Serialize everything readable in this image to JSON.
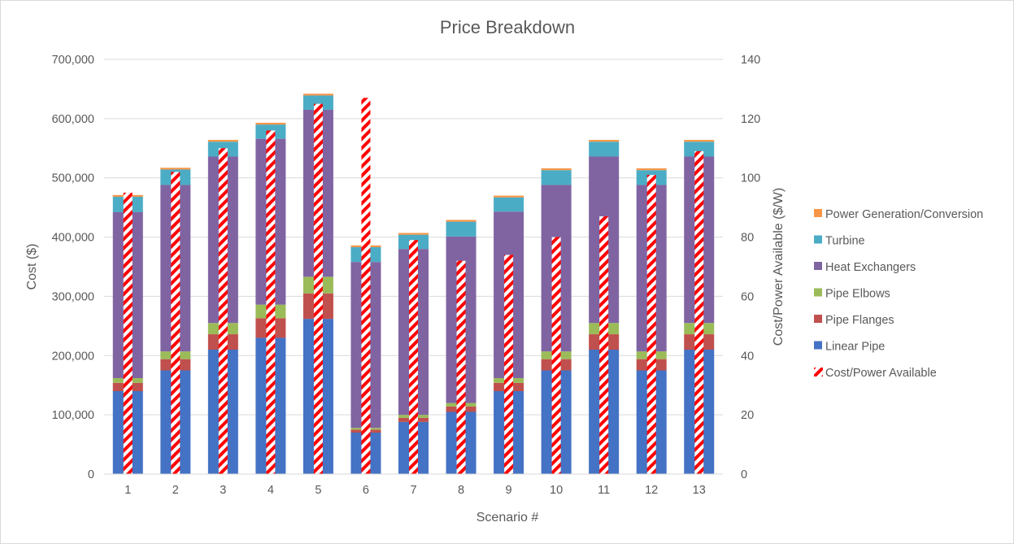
{
  "chart_data": {
    "type": "bar",
    "stacked": true,
    "title": "Price Breakdown",
    "xlabel": "Scenario #",
    "ylabel": "Cost ($)",
    "y2label": "Cost/Power Available ($/W)",
    "ylim": [
      0,
      700000
    ],
    "y2lim": [
      0,
      140
    ],
    "y_ticks": [
      "0",
      "100,000",
      "200,000",
      "300,000",
      "400,000",
      "500,000",
      "600,000",
      "700,000"
    ],
    "y2_ticks": [
      "0",
      "20",
      "40",
      "60",
      "80",
      "100",
      "120",
      "140"
    ],
    "categories": [
      "1",
      "2",
      "3",
      "4",
      "5",
      "6",
      "7",
      "8",
      "9",
      "10",
      "11",
      "12",
      "13"
    ],
    "series": [
      {
        "name": "Linear Pipe",
        "color": "#4472C4",
        "values": [
          140000,
          175000,
          210000,
          230000,
          262000,
          70000,
          88000,
          105000,
          140000,
          175000,
          210000,
          175000,
          210000
        ]
      },
      {
        "name": "Pipe Flanges",
        "color": "#C0504D",
        "values": [
          14000,
          19000,
          26000,
          33000,
          43000,
          5000,
          7000,
          9000,
          14000,
          19000,
          26000,
          19000,
          26000
        ]
      },
      {
        "name": "Pipe Elbows",
        "color": "#9BBB59",
        "values": [
          8000,
          13000,
          19000,
          23000,
          28000,
          3000,
          5000,
          6000,
          8000,
          13000,
          19000,
          13000,
          19000
        ]
      },
      {
        "name": "Heat Exchangers",
        "color": "#8064A2",
        "values": [
          280000,
          281000,
          281000,
          280000,
          282000,
          280000,
          280000,
          281000,
          281000,
          281000,
          281000,
          281000,
          281000
        ]
      },
      {
        "name": "Turbine",
        "color": "#4BACC6",
        "values": [
          26000,
          26000,
          25000,
          24000,
          24000,
          25000,
          24000,
          25000,
          24000,
          25000,
          25000,
          25000,
          25000
        ]
      },
      {
        "name": "Power Generation/Conversion",
        "color": "#F79646",
        "values": [
          3000,
          3000,
          3000,
          3000,
          3000,
          3000,
          3000,
          3000,
          3000,
          3000,
          3000,
          3000,
          3000
        ]
      }
    ],
    "secondary_series": {
      "name": "Cost/Power Available",
      "axis": "right",
      "color": "#FF0000",
      "values": [
        95,
        102,
        110,
        116,
        125,
        127,
        79,
        72,
        74,
        80,
        87,
        101,
        109
      ]
    },
    "legend": [
      "Power Generation/Conversion",
      "Turbine",
      "Heat Exchangers",
      "Pipe Elbows",
      "Pipe Flanges",
      "Linear Pipe",
      "Cost/Power Available"
    ],
    "legend_position": "right",
    "grid": true
  }
}
